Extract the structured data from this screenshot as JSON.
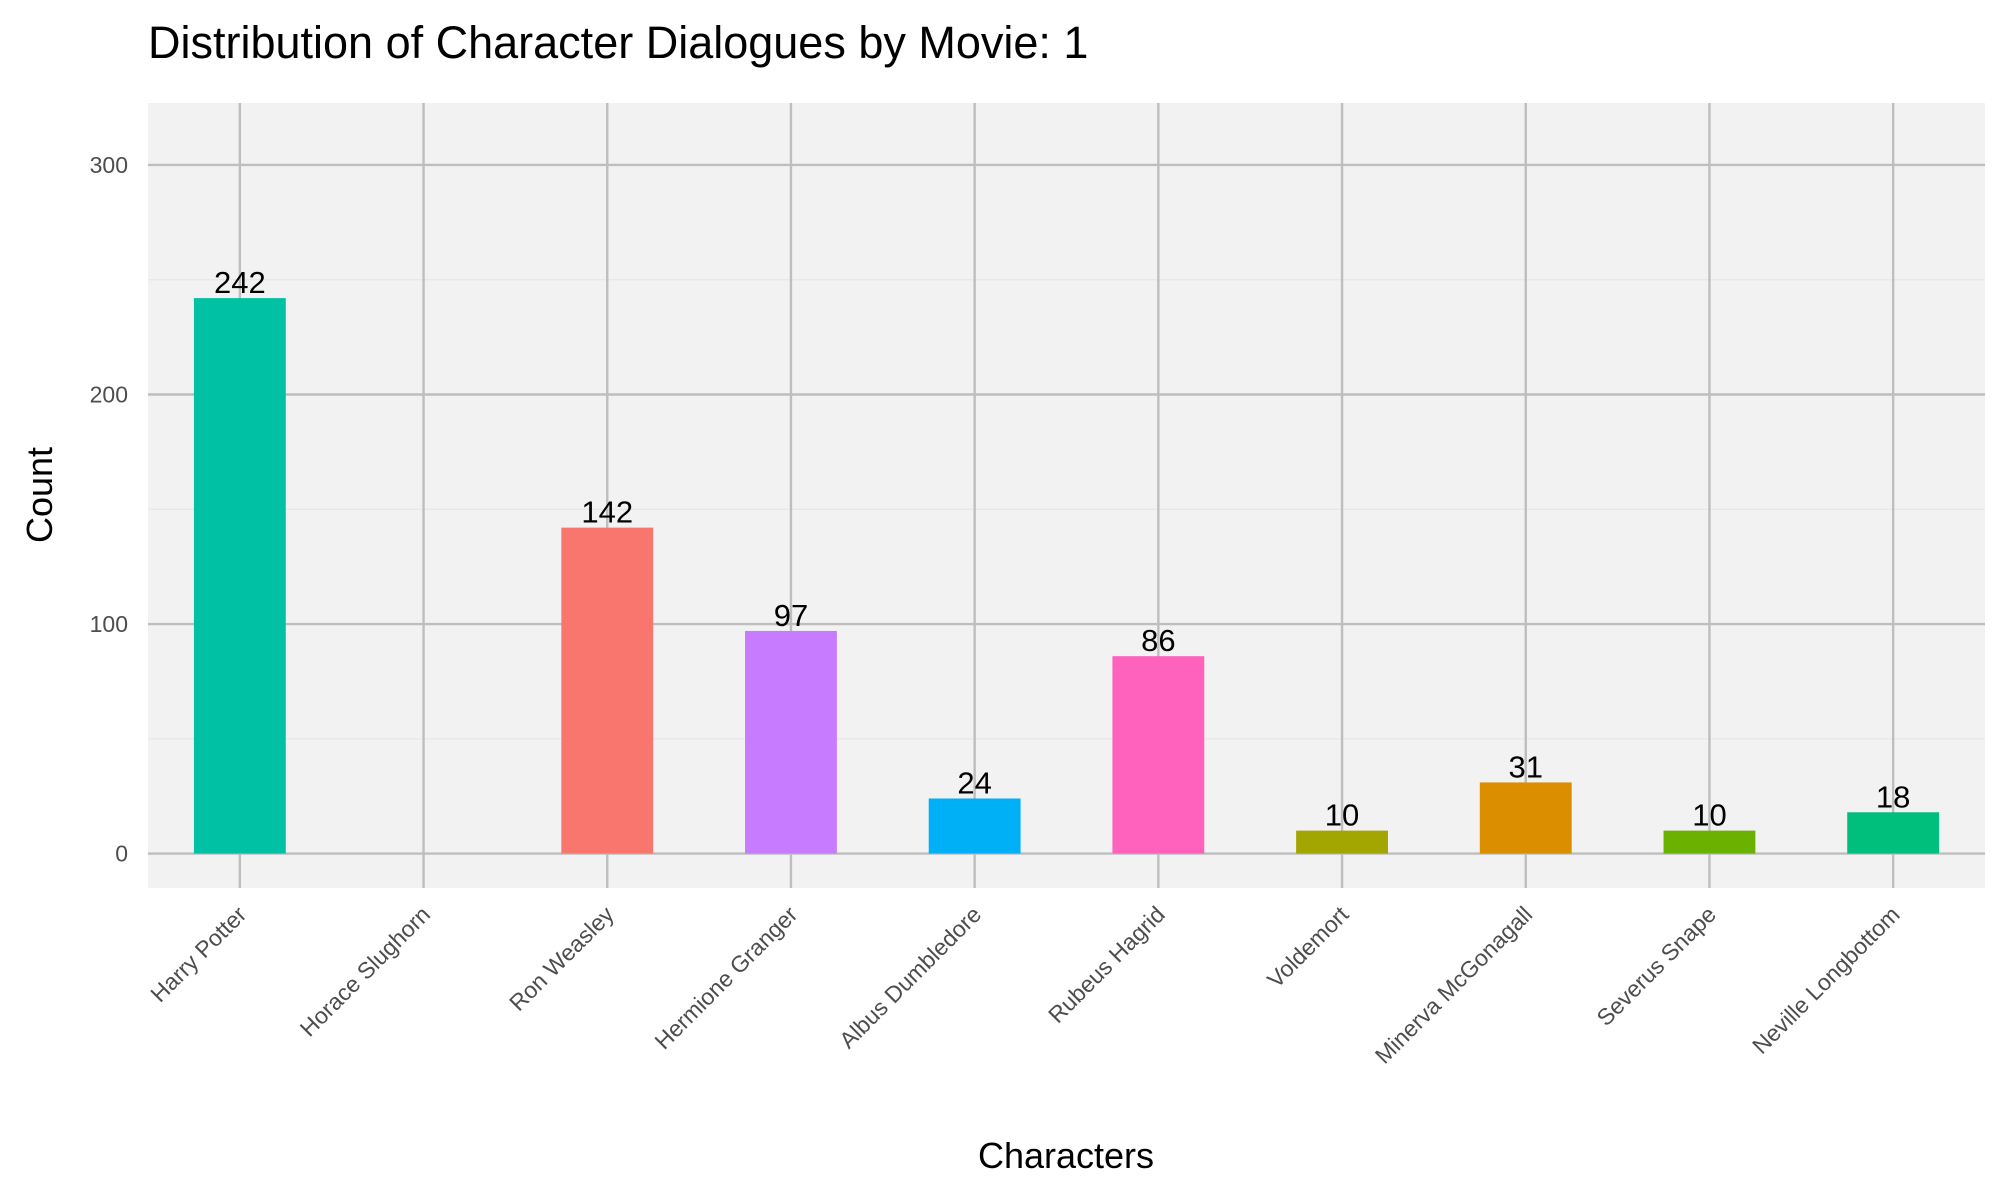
{
  "chart_data": {
    "type": "bar",
    "title": "Distribution of Character Dialogues by Movie: 1",
    "xlabel": "Characters",
    "ylabel": "Count",
    "ylim": [
      -15,
      327
    ],
    "yticks": [
      0,
      100,
      200,
      300
    ],
    "grid": true,
    "legend": "none",
    "categories": [
      "Harry Potter",
      "Horace Slughorn",
      "Ron Weasley",
      "Hermione Granger",
      "Albus Dumbledore",
      "Rubeus Hagrid",
      "Voldemort",
      "Minerva McGonagall",
      "Severus Snape",
      "Neville Longbottom"
    ],
    "values": [
      242,
      0,
      142,
      97,
      24,
      86,
      10,
      31,
      10,
      18
    ],
    "data_labels": [
      "242",
      "",
      "142",
      "97",
      "24",
      "86",
      "10",
      "31",
      "10",
      "18"
    ],
    "colors": [
      "#00C1A3",
      "#00BA38",
      "#F8766D",
      "#C77CFF",
      "#00B0F6",
      "#FF62BC",
      "#A3A500",
      "#DB8E00",
      "#6BB100",
      "#00BF7D"
    ],
    "panel_background": "#f2f2f2",
    "grid_color": "#bebebe"
  }
}
